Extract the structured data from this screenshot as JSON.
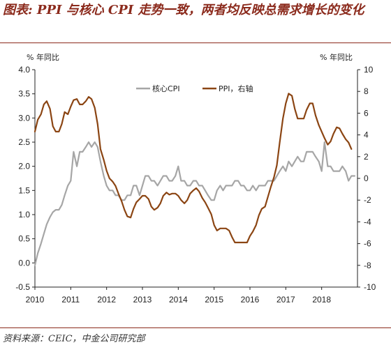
{
  "title": "图表: PPI 与核心 CPI 走势一致，两者均反映总需求增长的变化",
  "source": "资料来源：CEIC，中金公司研究部",
  "chart_data": {
    "type": "line",
    "left_unit": "% 年同比",
    "right_unit": "% 年同比",
    "left_axis": {
      "min": -0.5,
      "max": 4.0,
      "ticks": [
        "4.0",
        "3.5",
        "3.0",
        "2.5",
        "2.0",
        "1.5",
        "1.0",
        "0.5",
        "0.0",
        "-0.5"
      ]
    },
    "right_axis": {
      "min": -10,
      "max": 10,
      "ticks": [
        "10",
        "8",
        "6",
        "4",
        "2",
        "0",
        "-2",
        "-4",
        "-6",
        "-8",
        "-10"
      ]
    },
    "x_range": [
      2010.0,
      2019.0
    ],
    "x_ticks": [
      "2010",
      "2011",
      "2012",
      "2013",
      "2014",
      "2015",
      "2016",
      "2017",
      "2018"
    ],
    "legend_position": "top",
    "series": [
      {
        "name": "核心CPI",
        "axis": "left",
        "color": "#A6A6A6",
        "points": [
          [
            2010.0,
            -0.05
          ],
          [
            2010.08,
            0.2
          ],
          [
            2010.17,
            0.4
          ],
          [
            2010.25,
            0.6
          ],
          [
            2010.33,
            0.8
          ],
          [
            2010.42,
            0.95
          ],
          [
            2010.5,
            1.05
          ],
          [
            2010.58,
            1.1
          ],
          [
            2010.67,
            1.1
          ],
          [
            2010.75,
            1.2
          ],
          [
            2010.83,
            1.4
          ],
          [
            2010.92,
            1.6
          ],
          [
            2011.0,
            1.7
          ],
          [
            2011.08,
            2.3
          ],
          [
            2011.17,
            2.0
          ],
          [
            2011.25,
            2.3
          ],
          [
            2011.33,
            2.3
          ],
          [
            2011.42,
            2.4
          ],
          [
            2011.5,
            2.5
          ],
          [
            2011.58,
            2.4
          ],
          [
            2011.67,
            2.5
          ],
          [
            2011.75,
            2.4
          ],
          [
            2011.83,
            2.1
          ],
          [
            2011.92,
            1.8
          ],
          [
            2012.0,
            1.6
          ],
          [
            2012.08,
            1.5
          ],
          [
            2012.17,
            1.5
          ],
          [
            2012.25,
            1.4
          ],
          [
            2012.33,
            1.4
          ],
          [
            2012.42,
            1.3
          ],
          [
            2012.5,
            1.3
          ],
          [
            2012.58,
            1.4
          ],
          [
            2012.67,
            1.4
          ],
          [
            2012.75,
            1.6
          ],
          [
            2012.83,
            1.6
          ],
          [
            2012.92,
            1.4
          ],
          [
            2013.0,
            1.6
          ],
          [
            2013.08,
            1.8
          ],
          [
            2013.17,
            1.8
          ],
          [
            2013.25,
            1.7
          ],
          [
            2013.33,
            1.7
          ],
          [
            2013.42,
            1.6
          ],
          [
            2013.5,
            1.7
          ],
          [
            2013.58,
            1.8
          ],
          [
            2013.67,
            1.8
          ],
          [
            2013.75,
            1.7
          ],
          [
            2013.83,
            1.7
          ],
          [
            2013.92,
            1.8
          ],
          [
            2014.0,
            2.0
          ],
          [
            2014.08,
            1.7
          ],
          [
            2014.17,
            1.7
          ],
          [
            2014.25,
            1.6
          ],
          [
            2014.33,
            1.6
          ],
          [
            2014.42,
            1.7
          ],
          [
            2014.5,
            1.7
          ],
          [
            2014.58,
            1.6
          ],
          [
            2014.67,
            1.6
          ],
          [
            2014.75,
            1.5
          ],
          [
            2014.83,
            1.4
          ],
          [
            2014.92,
            1.3
          ],
          [
            2015.0,
            1.3
          ],
          [
            2015.08,
            1.5
          ],
          [
            2015.17,
            1.6
          ],
          [
            2015.25,
            1.5
          ],
          [
            2015.33,
            1.6
          ],
          [
            2015.42,
            1.6
          ],
          [
            2015.5,
            1.6
          ],
          [
            2015.58,
            1.7
          ],
          [
            2015.67,
            1.7
          ],
          [
            2015.75,
            1.6
          ],
          [
            2015.83,
            1.6
          ],
          [
            2015.92,
            1.5
          ],
          [
            2016.0,
            1.5
          ],
          [
            2016.08,
            1.6
          ],
          [
            2016.17,
            1.5
          ],
          [
            2016.25,
            1.6
          ],
          [
            2016.33,
            1.6
          ],
          [
            2016.42,
            1.6
          ],
          [
            2016.5,
            1.7
          ],
          [
            2016.58,
            1.7
          ],
          [
            2016.67,
            1.7
          ],
          [
            2016.75,
            1.8
          ],
          [
            2016.83,
            1.9
          ],
          [
            2016.92,
            2.0
          ],
          [
            2017.0,
            1.9
          ],
          [
            2017.08,
            2.1
          ],
          [
            2017.17,
            2.0
          ],
          [
            2017.25,
            2.1
          ],
          [
            2017.33,
            2.2
          ],
          [
            2017.42,
            2.1
          ],
          [
            2017.5,
            2.1
          ],
          [
            2017.58,
            2.3
          ],
          [
            2017.67,
            2.3
          ],
          [
            2017.75,
            2.3
          ],
          [
            2017.83,
            2.2
          ],
          [
            2017.92,
            2.1
          ],
          [
            2018.0,
            1.9
          ],
          [
            2018.08,
            2.5
          ],
          [
            2018.17,
            2.0
          ],
          [
            2018.25,
            2.0
          ],
          [
            2018.33,
            1.9
          ],
          [
            2018.42,
            1.9
          ],
          [
            2018.5,
            1.9
          ],
          [
            2018.58,
            2.0
          ],
          [
            2018.67,
            1.9
          ],
          [
            2018.75,
            1.7
          ],
          [
            2018.83,
            1.8
          ],
          [
            2018.92,
            1.8
          ]
        ]
      },
      {
        "name": "PPI，右轴",
        "axis": "right",
        "color": "#8B4513",
        "points": [
          [
            2010.0,
            4.3
          ],
          [
            2010.08,
            5.4
          ],
          [
            2010.17,
            5.9
          ],
          [
            2010.25,
            6.8
          ],
          [
            2010.33,
            7.1
          ],
          [
            2010.42,
            6.4
          ],
          [
            2010.5,
            4.8
          ],
          [
            2010.58,
            4.3
          ],
          [
            2010.67,
            4.3
          ],
          [
            2010.75,
            5.0
          ],
          [
            2010.83,
            6.1
          ],
          [
            2010.92,
            5.9
          ],
          [
            2011.0,
            6.6
          ],
          [
            2011.08,
            7.2
          ],
          [
            2011.17,
            7.3
          ],
          [
            2011.25,
            6.8
          ],
          [
            2011.33,
            6.8
          ],
          [
            2011.42,
            7.1
          ],
          [
            2011.5,
            7.5
          ],
          [
            2011.58,
            7.3
          ],
          [
            2011.67,
            6.5
          ],
          [
            2011.75,
            5.0
          ],
          [
            2011.83,
            2.7
          ],
          [
            2011.92,
            1.7
          ],
          [
            2012.0,
            0.7
          ],
          [
            2012.08,
            0.0
          ],
          [
            2012.17,
            -0.3
          ],
          [
            2012.25,
            -0.7
          ],
          [
            2012.33,
            -1.4
          ],
          [
            2012.42,
            -2.1
          ],
          [
            2012.5,
            -2.9
          ],
          [
            2012.58,
            -3.5
          ],
          [
            2012.67,
            -3.6
          ],
          [
            2012.75,
            -2.8
          ],
          [
            2012.83,
            -2.2
          ],
          [
            2012.92,
            -1.9
          ],
          [
            2013.0,
            -1.6
          ],
          [
            2013.08,
            -1.6
          ],
          [
            2013.17,
            -1.9
          ],
          [
            2013.25,
            -2.6
          ],
          [
            2013.33,
            -2.9
          ],
          [
            2013.42,
            -2.7
          ],
          [
            2013.5,
            -2.3
          ],
          [
            2013.58,
            -1.6
          ],
          [
            2013.67,
            -1.3
          ],
          [
            2013.75,
            -1.5
          ],
          [
            2013.83,
            -1.4
          ],
          [
            2013.92,
            -1.4
          ],
          [
            2014.0,
            -1.6
          ],
          [
            2014.08,
            -2.0
          ],
          [
            2014.17,
            -2.3
          ],
          [
            2014.25,
            -2.0
          ],
          [
            2014.33,
            -1.4
          ],
          [
            2014.42,
            -1.1
          ],
          [
            2014.5,
            -0.9
          ],
          [
            2014.58,
            -1.2
          ],
          [
            2014.67,
            -1.8
          ],
          [
            2014.75,
            -2.2
          ],
          [
            2014.83,
            -2.7
          ],
          [
            2014.92,
            -3.3
          ],
          [
            2015.0,
            -4.3
          ],
          [
            2015.08,
            -4.8
          ],
          [
            2015.17,
            -4.6
          ],
          [
            2015.25,
            -4.6
          ],
          [
            2015.33,
            -4.6
          ],
          [
            2015.42,
            -4.8
          ],
          [
            2015.5,
            -5.4
          ],
          [
            2015.58,
            -5.9
          ],
          [
            2015.67,
            -5.9
          ],
          [
            2015.75,
            -5.9
          ],
          [
            2015.83,
            -5.9
          ],
          [
            2015.92,
            -5.9
          ],
          [
            2016.0,
            -5.3
          ],
          [
            2016.08,
            -4.9
          ],
          [
            2016.17,
            -4.3
          ],
          [
            2016.25,
            -3.4
          ],
          [
            2016.33,
            -2.8
          ],
          [
            2016.42,
            -2.6
          ],
          [
            2016.5,
            -1.7
          ],
          [
            2016.58,
            -0.8
          ],
          [
            2016.67,
            0.1
          ],
          [
            2016.75,
            1.2
          ],
          [
            2016.83,
            3.3
          ],
          [
            2016.92,
            5.5
          ],
          [
            2017.0,
            6.9
          ],
          [
            2017.08,
            7.8
          ],
          [
            2017.17,
            7.6
          ],
          [
            2017.25,
            6.4
          ],
          [
            2017.33,
            5.5
          ],
          [
            2017.42,
            5.5
          ],
          [
            2017.5,
            5.5
          ],
          [
            2017.58,
            6.3
          ],
          [
            2017.67,
            6.9
          ],
          [
            2017.75,
            6.9
          ],
          [
            2017.83,
            5.8
          ],
          [
            2017.92,
            4.9
          ],
          [
            2018.0,
            4.3
          ],
          [
            2018.08,
            3.7
          ],
          [
            2018.17,
            3.1
          ],
          [
            2018.25,
            3.4
          ],
          [
            2018.33,
            4.1
          ],
          [
            2018.42,
            4.7
          ],
          [
            2018.5,
            4.6
          ],
          [
            2018.58,
            4.1
          ],
          [
            2018.67,
            3.6
          ],
          [
            2018.75,
            3.3
          ],
          [
            2018.83,
            2.7
          ]
        ]
      }
    ]
  }
}
